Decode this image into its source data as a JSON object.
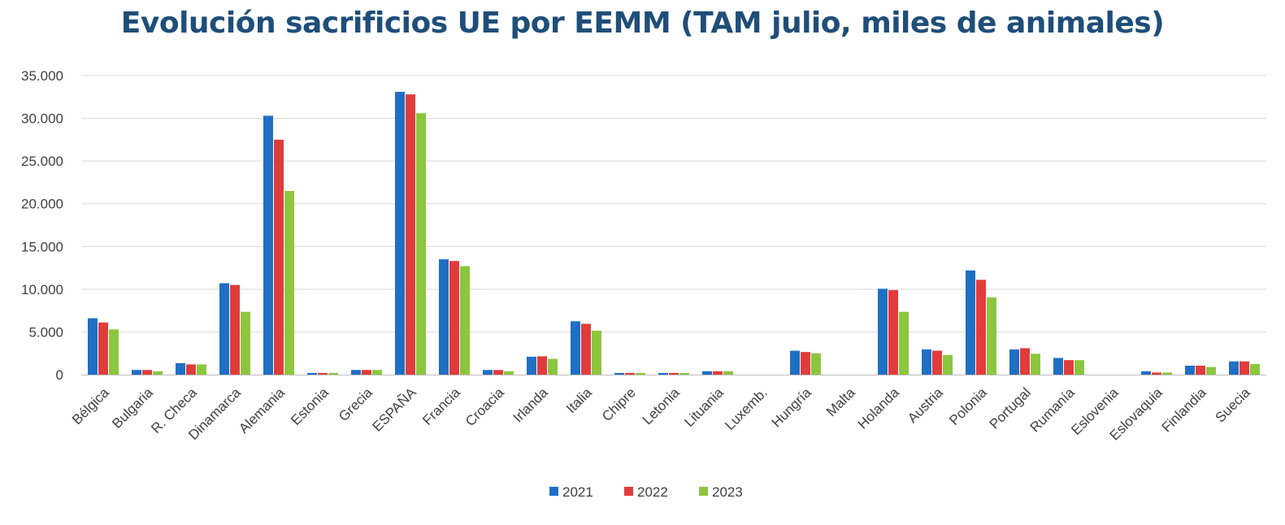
{
  "chart_data": {
    "type": "bar",
    "title": "Evolución sacrificios UE por EEMM (TAM julio, miles de animales)",
    "xlabel": "",
    "ylabel": "",
    "ylim": [
      0,
      35000
    ],
    "yticks": [
      0,
      5000,
      10000,
      15000,
      20000,
      25000,
      30000,
      35000
    ],
    "ytick_labels": [
      "0",
      "5.000",
      "10.000",
      "15.000",
      "20.000",
      "25.000",
      "30.000",
      "35.000"
    ],
    "grid": true,
    "legend_position": "bottom",
    "categories": [
      "Bélgica",
      "Bulgaria",
      "R. Checa",
      "Dinamarca",
      "Alemania",
      "Estonia",
      "Grecia",
      "ESPAÑA",
      "Francia",
      "Croacia",
      "Irlanda",
      "Italia",
      "Chipre",
      "Letonia",
      "Lituania",
      "Luxemb.",
      "Hungría",
      "Malta",
      "Holanda",
      "Austria",
      "Polonia",
      "Portugal",
      "Rumanía",
      "Eslovenia",
      "Eslovaquia",
      "Finlandia",
      "Suecia"
    ],
    "series": [
      {
        "name": "2021",
        "color": "#1f6fc5",
        "values": [
          6600,
          550,
          1350,
          10700,
          30300,
          200,
          550,
          33100,
          13500,
          550,
          2100,
          6250,
          200,
          200,
          400,
          0,
          2800,
          0,
          10050,
          2950,
          12200,
          2950,
          1950,
          0,
          400,
          1050,
          1550
        ]
      },
      {
        "name": "2022",
        "color": "#e03c3c",
        "values": [
          6100,
          550,
          1200,
          10500,
          27500,
          200,
          550,
          32800,
          13300,
          550,
          2150,
          5950,
          200,
          200,
          400,
          0,
          2650,
          0,
          9900,
          2800,
          11100,
          3100,
          1700,
          0,
          250,
          1050,
          1550
        ]
      },
      {
        "name": "2023",
        "color": "#8cc63f",
        "values": [
          5300,
          400,
          1200,
          7350,
          21500,
          200,
          550,
          30600,
          12700,
          400,
          1850,
          5150,
          200,
          200,
          400,
          0,
          2500,
          0,
          7350,
          2300,
          9050,
          2450,
          1700,
          0,
          250,
          900,
          1250
        ]
      }
    ]
  }
}
